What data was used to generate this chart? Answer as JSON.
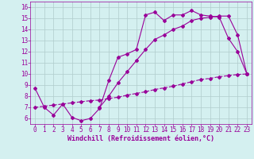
{
  "line1_x": [
    0,
    1,
    2,
    3,
    4,
    5,
    6,
    7,
    8,
    9,
    10,
    11,
    12,
    13,
    14,
    15,
    16,
    17,
    18,
    19,
    20,
    21,
    22,
    23
  ],
  "line1_y": [
    8.7,
    7.0,
    6.3,
    7.3,
    6.1,
    5.8,
    6.0,
    6.9,
    9.4,
    11.5,
    11.8,
    12.2,
    15.3,
    15.55,
    14.8,
    15.3,
    15.3,
    15.7,
    15.3,
    15.2,
    15.1,
    13.2,
    12.0,
    10.0
  ],
  "line2_x": [
    0,
    1,
    2,
    3,
    4,
    5,
    6,
    7,
    8,
    9,
    10,
    11,
    12,
    13,
    14,
    15,
    16,
    17,
    18,
    19,
    20,
    21,
    22,
    23
  ],
  "line2_y": [
    7.0,
    7.1,
    7.2,
    7.3,
    7.4,
    7.5,
    7.6,
    7.65,
    7.8,
    7.9,
    8.1,
    8.25,
    8.4,
    8.6,
    8.75,
    8.9,
    9.1,
    9.3,
    9.5,
    9.6,
    9.75,
    9.85,
    9.95,
    10.0
  ],
  "line3_x": [
    7,
    8,
    9,
    10,
    11,
    12,
    13,
    14,
    15,
    16,
    17,
    18,
    19,
    20,
    21,
    22,
    23
  ],
  "line3_y": [
    7.0,
    8.0,
    9.2,
    10.2,
    11.2,
    12.2,
    13.1,
    13.5,
    14.0,
    14.3,
    14.8,
    15.0,
    15.1,
    15.2,
    15.2,
    13.5,
    10.0
  ],
  "color": "#990099",
  "bg_color": "#d4f0f0",
  "grid_color": "#b0cccc",
  "xlim": [
    -0.5,
    23.5
  ],
  "ylim": [
    5.5,
    16.5
  ],
  "yticks": [
    6,
    7,
    8,
    9,
    10,
    11,
    12,
    13,
    14,
    15,
    16
  ],
  "xticks": [
    0,
    1,
    2,
    3,
    4,
    5,
    6,
    7,
    8,
    9,
    10,
    11,
    12,
    13,
    14,
    15,
    16,
    17,
    18,
    19,
    20,
    21,
    22,
    23
  ],
  "xlabel": "Windchill (Refroidissement éolien,°C)",
  "xlabel_fontsize": 6.0,
  "tick_fontsize": 5.5,
  "marker": "D",
  "marker_size": 2.0,
  "line_width": 0.8
}
